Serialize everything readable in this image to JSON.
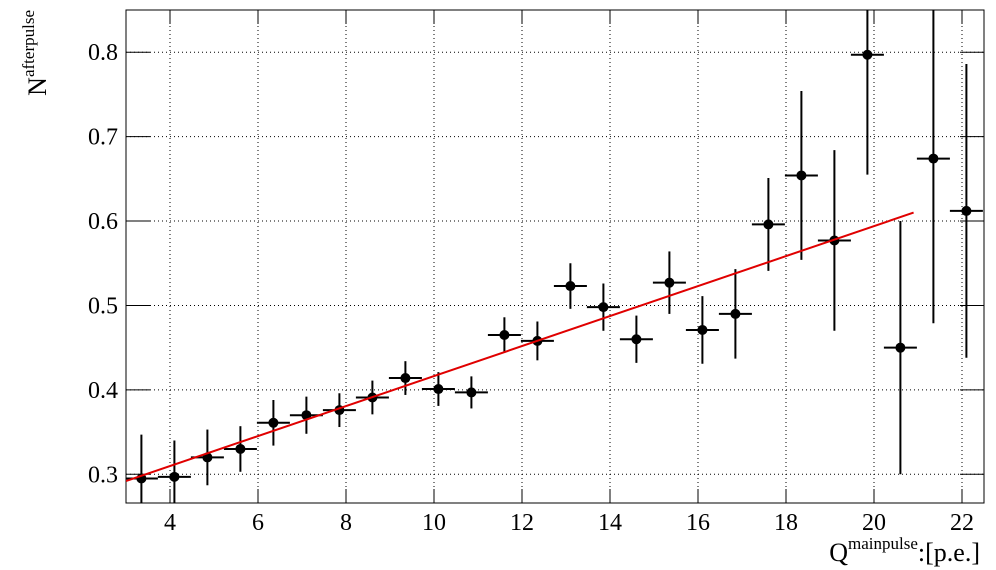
{
  "chart_data": {
    "type": "scatter",
    "x_label": {
      "base": "Q",
      "sup": "mainpulse",
      "suffix": ":[p.e.]"
    },
    "y_label": {
      "base": "N",
      "sup": "afterpulse"
    },
    "xlim": [
      3,
      22.5
    ],
    "ylim": [
      0.266,
      0.85
    ],
    "xticks": [
      4,
      6,
      8,
      10,
      12,
      14,
      16,
      18,
      20,
      22
    ],
    "yticks": [
      0.3,
      0.4,
      0.5,
      0.6,
      0.7,
      0.8
    ],
    "grid": true,
    "series": [
      {
        "color": "#000000",
        "x": [
          3.35,
          4.1,
          4.85,
          5.6,
          6.35,
          7.1,
          7.85,
          8.6,
          9.35,
          10.1,
          10.85,
          11.6,
          12.35,
          13.1,
          13.85,
          14.6,
          15.35,
          16.1,
          16.85,
          17.6,
          18.35,
          19.1,
          19.85,
          20.6,
          21.35,
          22.1
        ],
        "x_err": [
          0.375,
          0.375,
          0.375,
          0.375,
          0.375,
          0.375,
          0.375,
          0.375,
          0.375,
          0.375,
          0.375,
          0.375,
          0.375,
          0.375,
          0.375,
          0.375,
          0.375,
          0.375,
          0.375,
          0.375,
          0.375,
          0.375,
          0.375,
          0.375,
          0.375,
          0.375
        ],
        "values": [
          0.295,
          0.297,
          0.32,
          0.33,
          0.361,
          0.37,
          0.376,
          0.391,
          0.414,
          0.401,
          0.397,
          0.465,
          0.458,
          0.523,
          0.498,
          0.46,
          0.527,
          0.471,
          0.49,
          0.596,
          0.654,
          0.577,
          0.797,
          0.45,
          0.674,
          0.612
        ],
        "errors": [
          0.052,
          0.043,
          0.033,
          0.027,
          0.027,
          0.022,
          0.02,
          0.02,
          0.02,
          0.02,
          0.019,
          0.021,
          0.023,
          0.027,
          0.028,
          0.028,
          0.037,
          0.04,
          0.053,
          0.055,
          0.1,
          0.107,
          0.142,
          0.15,
          0.195,
          0.174
        ]
      },
      {
        "type": "line",
        "color": "#e00000",
        "x": [
          3.0,
          20.9
        ],
        "values": [
          0.292,
          0.61
        ]
      }
    ]
  }
}
